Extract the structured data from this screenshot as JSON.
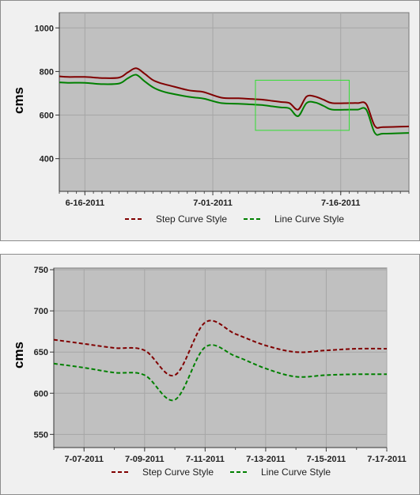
{
  "chart_data": [
    {
      "type": "line",
      "ylabel": "cms",
      "ylim": [
        250,
        1070
      ],
      "grid": true,
      "x_ticks": [
        "6-16-2011",
        "7-01-2011",
        "7-16-2011"
      ],
      "y_ticks": [
        400,
        600,
        800,
        1000
      ],
      "series": [
        {
          "name": "Step Curve Style",
          "color": "#800000",
          "dash": true,
          "x": [
            "2011-06-13",
            "2011-06-14",
            "2011-06-16",
            "2011-06-18",
            "2011-06-20",
            "2011-06-21",
            "2011-06-22",
            "2011-06-23",
            "2011-06-24",
            "2011-06-25",
            "2011-06-26",
            "2011-06-28",
            "2011-06-29",
            "2011-06-30",
            "2011-07-02",
            "2011-07-04",
            "2011-07-05",
            "2011-07-07",
            "2011-07-08",
            "2011-07-09",
            "2011-07-10",
            "2011-07-11",
            "2011-07-12",
            "2011-07-13",
            "2011-07-14",
            "2011-07-15",
            "2011-07-17",
            "2011-07-18",
            "2011-07-19",
            "2011-07-20",
            "2011-07-21",
            "2011-07-24"
          ],
          "y": [
            778,
            775,
            775,
            770,
            772,
            795,
            815,
            790,
            760,
            745,
            735,
            715,
            710,
            705,
            680,
            677,
            675,
            670,
            665,
            660,
            655,
            625,
            685,
            685,
            670,
            655,
            655,
            655,
            650,
            550,
            545,
            548
          ]
        },
        {
          "name": "Line Curve Style",
          "color": "#008000",
          "dash": true,
          "x": [
            "2011-06-13",
            "2011-06-14",
            "2011-06-16",
            "2011-06-18",
            "2011-06-20",
            "2011-06-21",
            "2011-06-22",
            "2011-06-23",
            "2011-06-24",
            "2011-06-25",
            "2011-06-26",
            "2011-06-28",
            "2011-06-29",
            "2011-06-30",
            "2011-07-02",
            "2011-07-04",
            "2011-07-05",
            "2011-07-07",
            "2011-07-08",
            "2011-07-09",
            "2011-07-10",
            "2011-07-11",
            "2011-07-12",
            "2011-07-13",
            "2011-07-14",
            "2011-07-15",
            "2011-07-17",
            "2011-07-18",
            "2011-07-19",
            "2011-07-20",
            "2011-07-21",
            "2011-07-24"
          ],
          "y": [
            750,
            748,
            748,
            742,
            745,
            768,
            785,
            755,
            727,
            710,
            700,
            685,
            680,
            675,
            655,
            652,
            650,
            645,
            640,
            635,
            630,
            595,
            655,
            658,
            642,
            625,
            625,
            625,
            625,
            518,
            515,
            518
          ]
        }
      ],
      "zoom_box": {
        "x": [
          "2011-07-06",
          "2011-07-17"
        ],
        "y": [
          530,
          760
        ]
      }
    },
    {
      "type": "line",
      "ylabel": "cms",
      "ylim": [
        534,
        752
      ],
      "grid": true,
      "x_ticks": [
        "7-07-2011",
        "7-09-2011",
        "7-11-2011",
        "7-13-2011",
        "7-15-2011",
        "7-17-2011"
      ],
      "y_ticks": [
        550,
        600,
        650,
        700,
        750
      ],
      "series": [
        {
          "name": "Step Curve Style",
          "color": "#800000",
          "dash": true,
          "x": [
            "2011-07-06",
            "2011-07-07",
            "2011-07-08",
            "2011-07-09",
            "2011-07-10",
            "2011-07-11",
            "2011-07-12",
            "2011-07-13",
            "2011-07-14",
            "2011-07-15",
            "2011-07-16",
            "2011-07-17"
          ],
          "y": [
            665,
            660,
            655,
            652,
            622,
            686,
            672,
            658,
            650,
            652,
            654,
            654
          ]
        },
        {
          "name": "Line Curve Style",
          "color": "#008000",
          "dash": true,
          "x": [
            "2011-07-06",
            "2011-07-07",
            "2011-07-08",
            "2011-07-09",
            "2011-07-10",
            "2011-07-11",
            "2011-07-12",
            "2011-07-13",
            "2011-07-14",
            "2011-07-15",
            "2011-07-16",
            "2011-07-17"
          ],
          "y": [
            636,
            631,
            625,
            622,
            592,
            656,
            645,
            630,
            620,
            622,
            623,
            623
          ]
        }
      ]
    }
  ]
}
